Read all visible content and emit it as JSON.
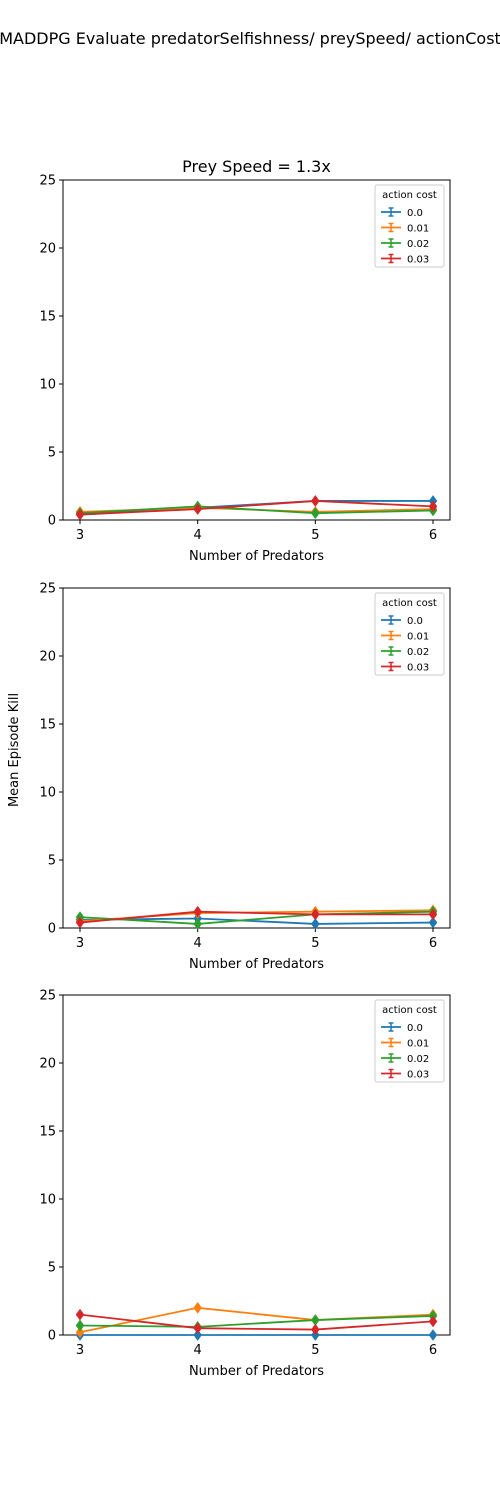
{
  "figure": {
    "suptitle": "MADDPG Evaluate predatorSelfishness/ preySpeed/ actionCost",
    "ylabel": "Mean Episode Kill"
  },
  "chart_data": [
    {
      "type": "line",
      "title": "Prey Speed = 1.3x",
      "xlabel": "Number of Predators",
      "x": [
        3,
        4,
        5,
        6
      ],
      "xticks": [
        "3",
        "4",
        "5",
        "6"
      ],
      "ylim": [
        0,
        25
      ],
      "yticks": [
        "0",
        "5",
        "10",
        "15",
        "20",
        "25"
      ],
      "legend_title": "action cost",
      "legend_position": "top-right",
      "series": [
        {
          "name": "0.0",
          "color": "#1f77b4",
          "values": [
            0.4,
            0.9,
            1.4,
            1.4
          ]
        },
        {
          "name": "0.01",
          "color": "#ff7f0e",
          "values": [
            0.6,
            0.9,
            0.6,
            0.8
          ]
        },
        {
          "name": "0.02",
          "color": "#2ca02c",
          "values": [
            0.5,
            1.0,
            0.5,
            0.7
          ]
        },
        {
          "name": "0.03",
          "color": "#d62728",
          "values": [
            0.4,
            0.8,
            1.4,
            1.0
          ]
        }
      ]
    },
    {
      "type": "line",
      "title": "",
      "xlabel": "Number of Predators",
      "x": [
        3,
        4,
        5,
        6
      ],
      "xticks": [
        "3",
        "4",
        "5",
        "6"
      ],
      "ylim": [
        0,
        25
      ],
      "yticks": [
        "0",
        "5",
        "10",
        "15",
        "20",
        "25"
      ],
      "legend_title": "action cost",
      "legend_position": "top-right",
      "series": [
        {
          "name": "0.0",
          "color": "#1f77b4",
          "values": [
            0.6,
            0.7,
            0.3,
            0.4
          ]
        },
        {
          "name": "0.01",
          "color": "#ff7f0e",
          "values": [
            0.5,
            1.1,
            1.2,
            1.3
          ]
        },
        {
          "name": "0.02",
          "color": "#2ca02c",
          "values": [
            0.8,
            0.3,
            1.0,
            1.2
          ]
        },
        {
          "name": "0.03",
          "color": "#d62728",
          "values": [
            0.4,
            1.2,
            1.0,
            1.0
          ]
        }
      ]
    },
    {
      "type": "line",
      "title": "",
      "xlabel": "Number of Predators",
      "x": [
        3,
        4,
        5,
        6
      ],
      "xticks": [
        "3",
        "4",
        "5",
        "6"
      ],
      "ylim": [
        0,
        25
      ],
      "yticks": [
        "0",
        "5",
        "10",
        "15",
        "20",
        "25"
      ],
      "legend_title": "action cost",
      "legend_position": "top-right",
      "series": [
        {
          "name": "0.0",
          "color": "#1f77b4",
          "values": [
            0.0,
            0.0,
            0.0,
            0.0
          ]
        },
        {
          "name": "0.01",
          "color": "#ff7f0e",
          "values": [
            0.2,
            2.0,
            1.1,
            1.5
          ]
        },
        {
          "name": "0.02",
          "color": "#2ca02c",
          "values": [
            0.7,
            0.6,
            1.1,
            1.4
          ]
        },
        {
          "name": "0.03",
          "color": "#d62728",
          "values": [
            1.5,
            0.5,
            0.4,
            1.0
          ]
        }
      ]
    }
  ]
}
